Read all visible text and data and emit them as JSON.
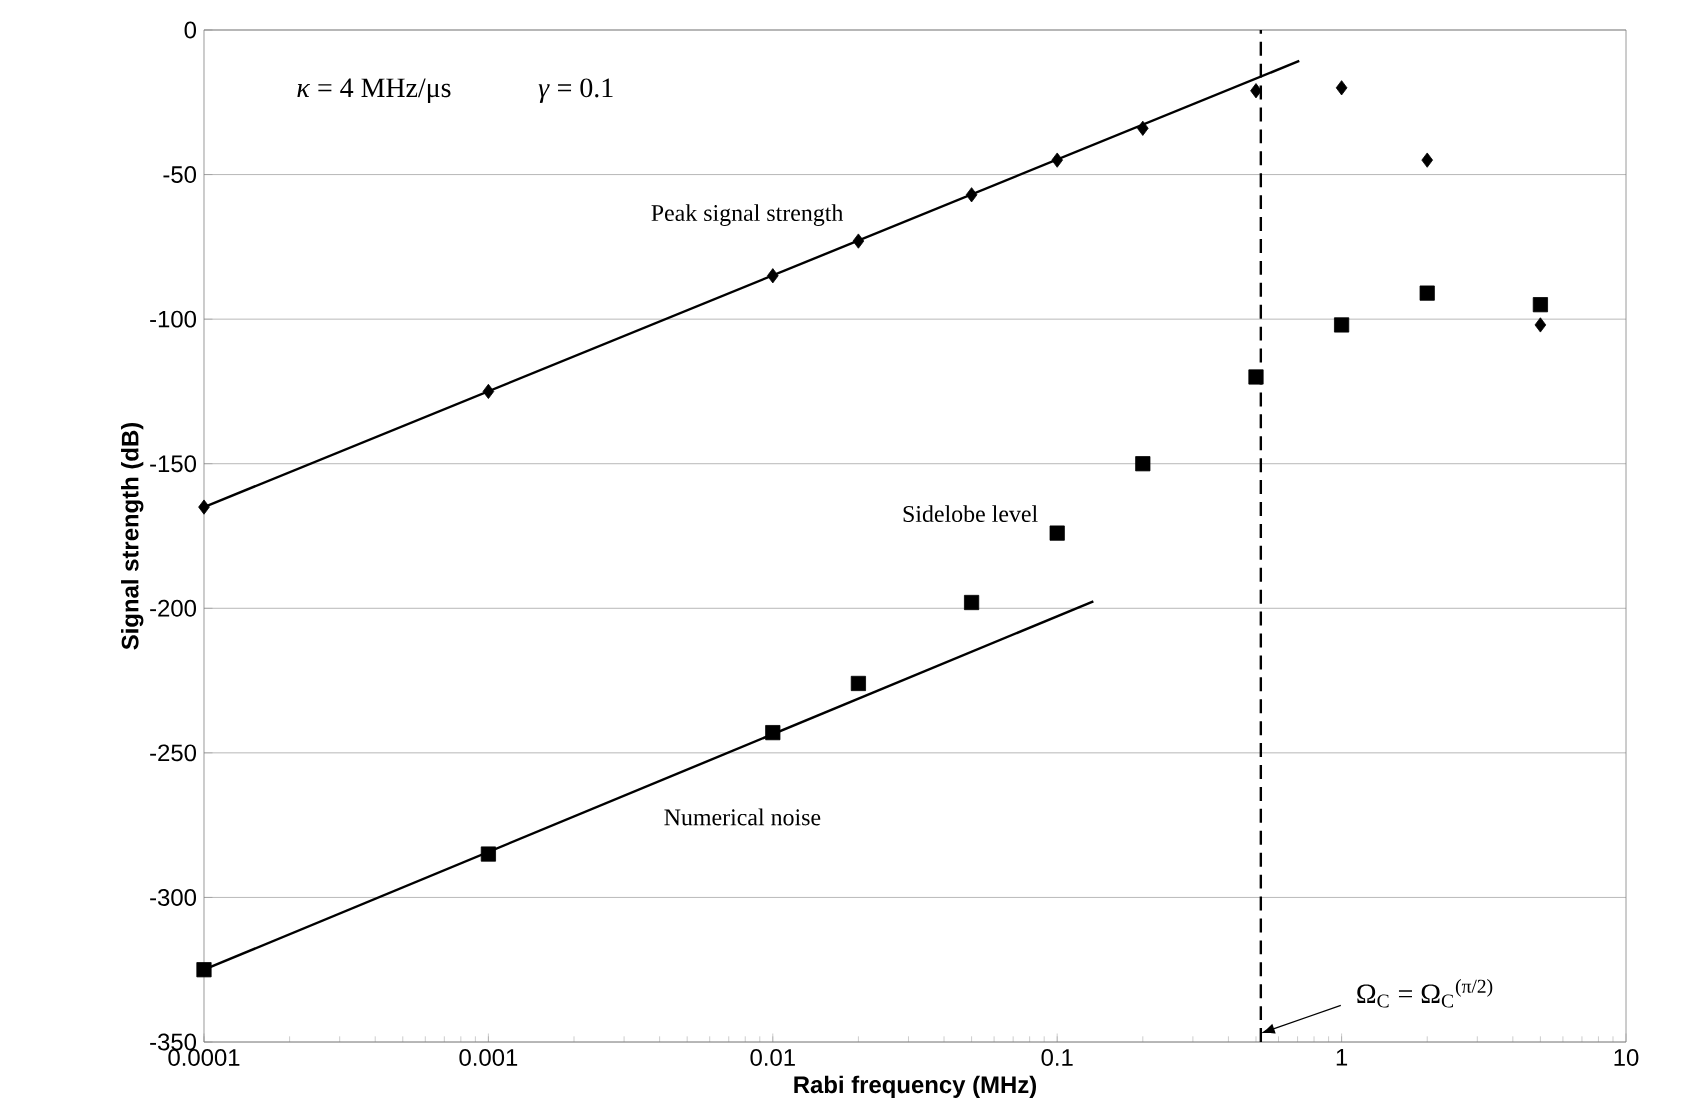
{
  "chart_data": {
    "type": "scatter",
    "xlabel": "Rabi frequency (MHz)",
    "ylabel": "Signal strength (dB)",
    "log": "x",
    "grid": "y",
    "xlim": [
      0.0001,
      10
    ],
    "xticks": [
      0.0001,
      0.001,
      0.01,
      0.1,
      1,
      10
    ],
    "ylim": [
      -350,
      0
    ],
    "yticks": [
      -350,
      -300,
      -250,
      -200,
      -150,
      -100,
      -50,
      0
    ],
    "series": [
      {
        "name": "Peak signal strength",
        "marker": "diamond",
        "color": "#000000",
        "x": [
          0.0001,
          0.001,
          0.01,
          0.02,
          0.05,
          0.1,
          0.2,
          0.5,
          1,
          2,
          5
        ],
        "values": [
          -165,
          -125,
          -85,
          -73,
          -57,
          -45,
          -34,
          -21,
          -20,
          -45,
          -102
        ]
      },
      {
        "name": "Sidelobe level",
        "marker": "square",
        "color": "#000000",
        "x": [
          0.0001,
          0.001,
          0.01,
          0.02,
          0.05,
          0.1,
          0.2,
          0.5,
          1,
          2,
          5
        ],
        "values": [
          -325,
          -285,
          -243,
          -226,
          -198,
          -174,
          -150,
          -120,
          -102,
          -91,
          -95
        ]
      },
      {
        "type": "line",
        "marker": "none",
        "line_style": "solid",
        "color": "#000000",
        "x": [
          0.0001,
          0.71
        ],
        "values": [
          -165,
          -10.7
        ]
      },
      {
        "name": "Numerical noise",
        "type": "line",
        "marker": "none",
        "line_style": "solid",
        "color": "#000000",
        "x": [
          0.0001,
          0.134
        ],
        "values": [
          -325,
          -197.6
        ]
      }
    ],
    "ref_lines": [
      {
        "axis": "x",
        "value": 0.52,
        "line_style": "dashed",
        "color": "#000000"
      }
    ],
    "annotations": [
      "*κ* = 4 MHz/μs",
      "*γ* = 0.1",
      {
        "text": "Ω$_{C}$ = Ω$_{C}$$^{(π/2)}$",
        "x": 0.52,
        "y": -347
      }
    ]
  }
}
